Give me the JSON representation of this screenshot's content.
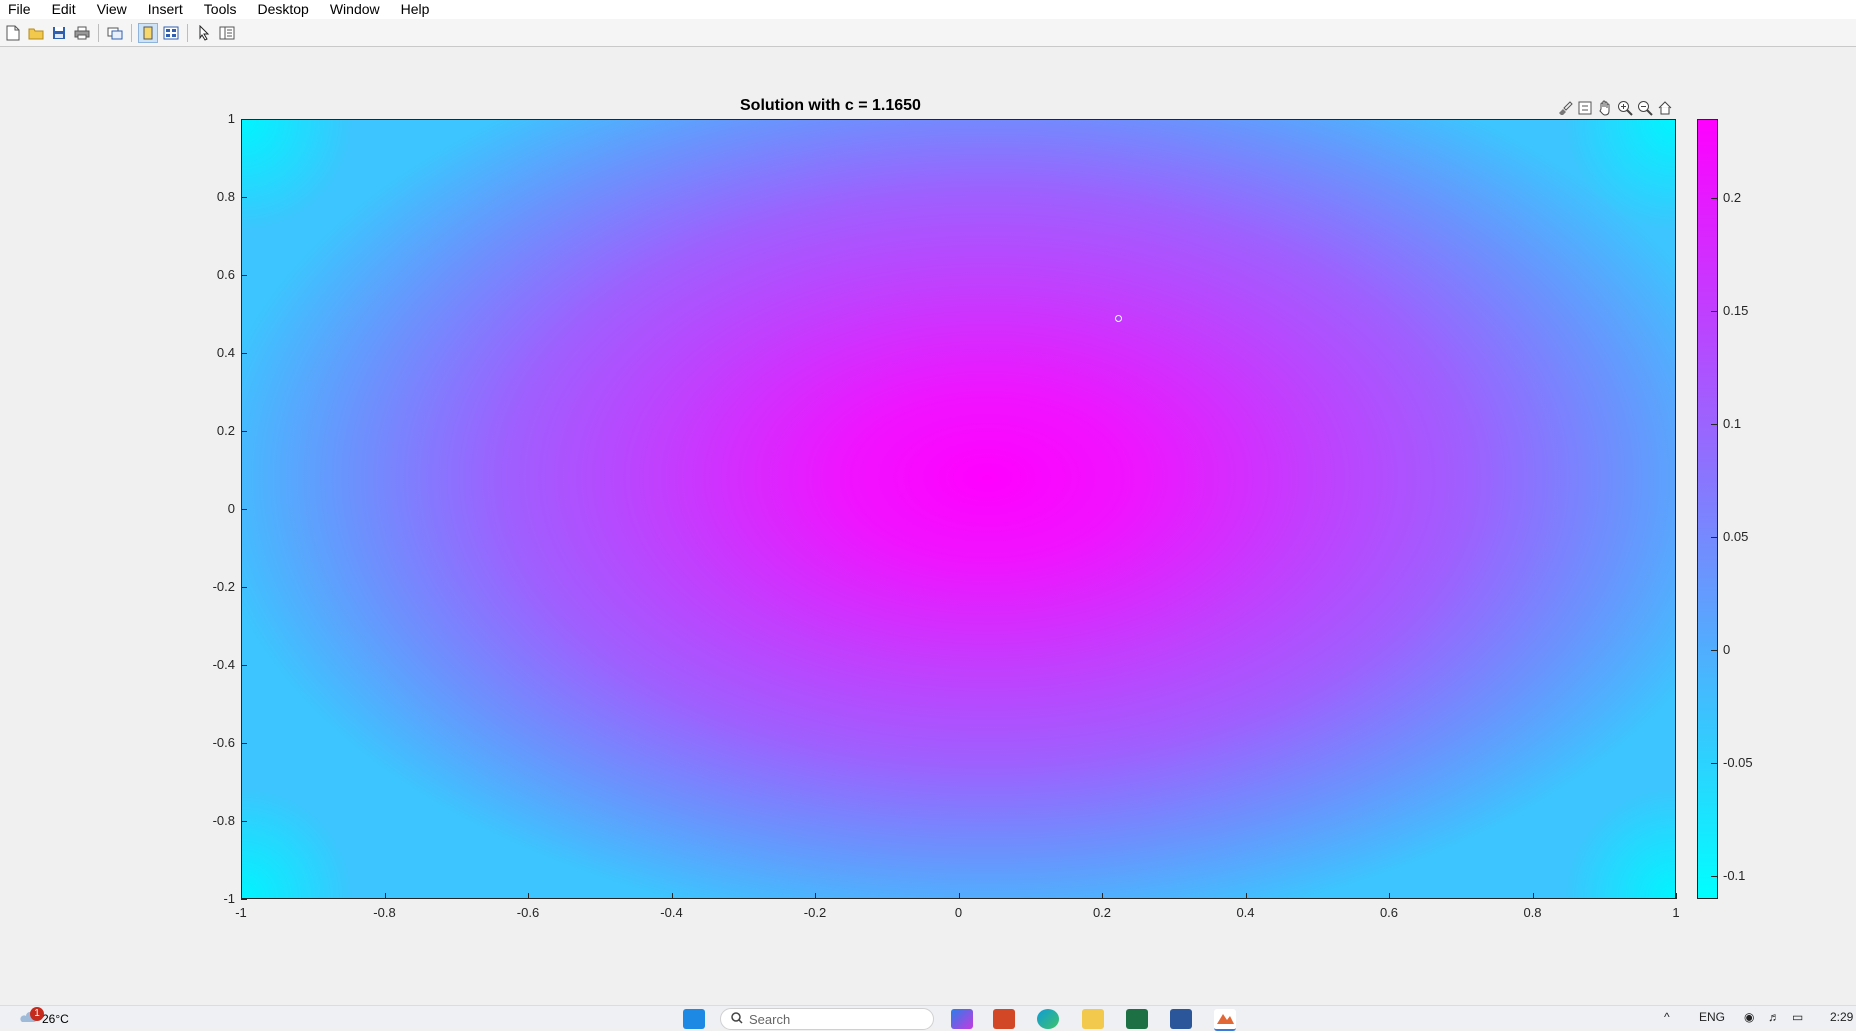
{
  "menu": [
    "File",
    "Edit",
    "View",
    "Insert",
    "Tools",
    "Desktop",
    "Window",
    "Help"
  ],
  "toolbar": {
    "icons": [
      "new-figure-icon",
      "open-file-icon",
      "save-icon",
      "print-icon",
      "link-plot-icon",
      "dock-icon",
      "property-editor-icon",
      "select-arrow-icon",
      "plot-browser-icon"
    ]
  },
  "figure": {
    "title": "Solution with c = 1.1650",
    "axes_toolbar": [
      "brush-icon",
      "data-tips-icon",
      "pan-icon",
      "zoom-in-icon",
      "zoom-out-icon",
      "home-icon"
    ]
  },
  "chart_data": {
    "type": "heatmap",
    "title": "Solution with c = 1.1650",
    "xlabel": "",
    "ylabel": "",
    "xlim": [
      -1,
      1
    ],
    "ylim": [
      -1,
      1
    ],
    "x_ticks": [
      "-1",
      "-0.8",
      "-0.6",
      "-0.4",
      "-0.2",
      "0",
      "0.2",
      "0.4",
      "0.6",
      "0.8",
      "1"
    ],
    "y_ticks": [
      "1",
      "0.8",
      "0.6",
      "0.4",
      "0.2",
      "0",
      "-0.2",
      "-0.4",
      "-0.6",
      "-0.8",
      "-1"
    ],
    "colormap": "cool",
    "colormap_colors": [
      "#00ffff",
      "#ff00ff"
    ],
    "colorbar": {
      "clim": [
        -0.11,
        0.235
      ],
      "ticks": [
        "0.2",
        "0.15",
        "0.1",
        "0.05",
        "0",
        "-0.05",
        "-0.1"
      ]
    },
    "peak": {
      "x": 0.05,
      "y": 0.05,
      "value": 0.235
    },
    "marker_point": {
      "x": 0.22,
      "y": 0.49
    },
    "grid": false
  },
  "taskbar": {
    "weather": "26°C",
    "weather_badge": "1",
    "search_placeholder": "Search",
    "language": "ENG",
    "time": "2:29"
  }
}
